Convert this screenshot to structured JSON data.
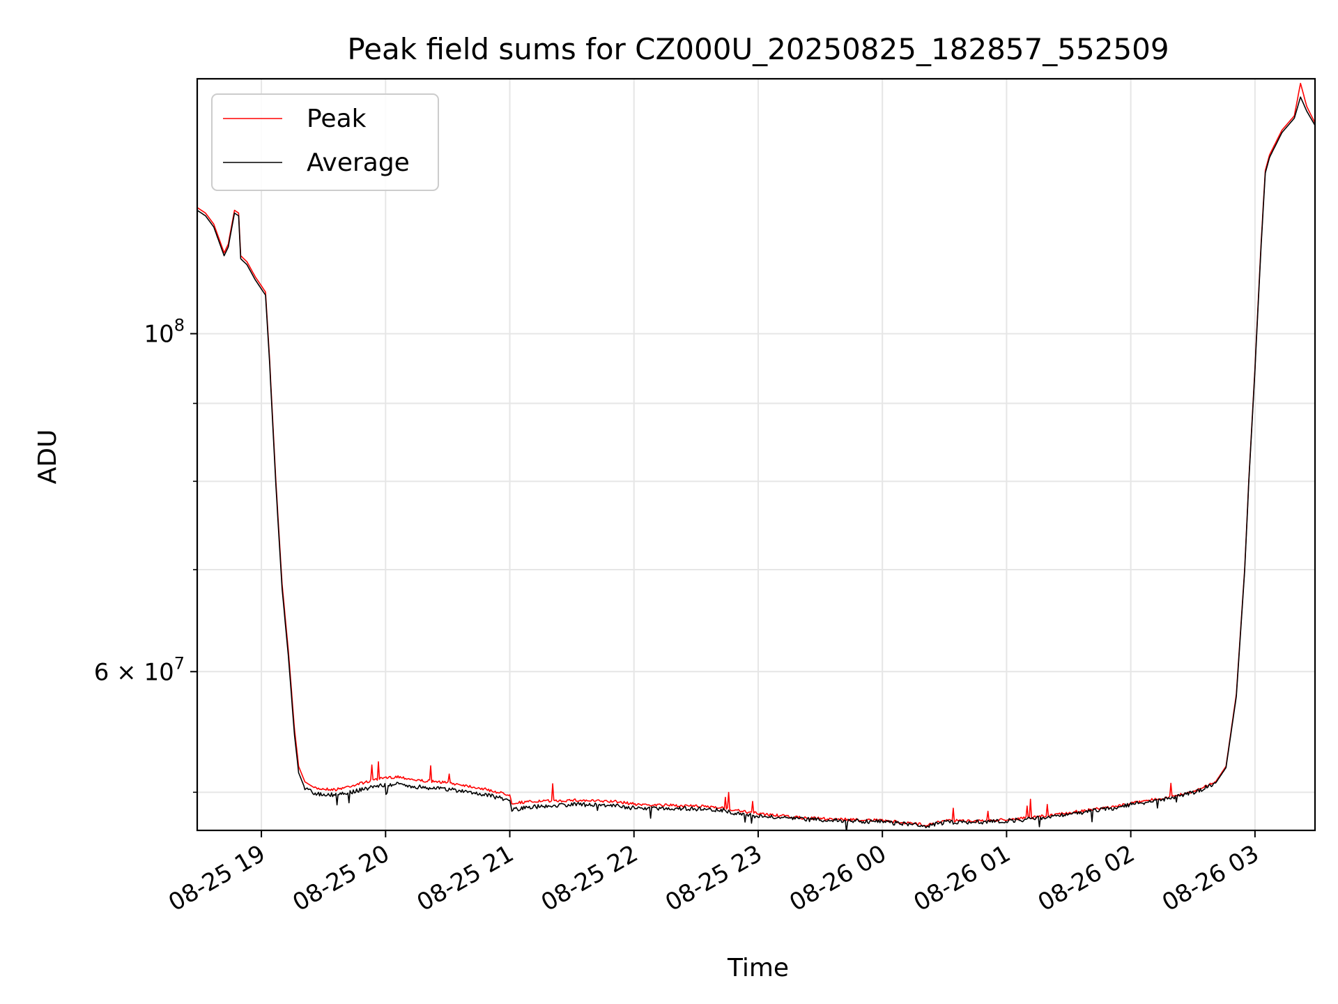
{
  "chart_data": {
    "type": "line",
    "title": "Peak field sums for CZ000U_20250825_182857_552509",
    "xlabel": "Time",
    "ylabel": "ADU",
    "y_scale": "log",
    "grid": true,
    "legend_position": "top-left",
    "xlim": [
      "2025-08-25 18:29",
      "2025-08-26 03:29"
    ],
    "ylim": [
      47200000,
      147000000
    ],
    "x_ticks": [
      {
        "value": "2025-08-25 19:00",
        "label": "08-25 19"
      },
      {
        "value": "2025-08-25 20:00",
        "label": "08-25 20"
      },
      {
        "value": "2025-08-25 21:00",
        "label": "08-25 21"
      },
      {
        "value": "2025-08-25 22:00",
        "label": "08-25 22"
      },
      {
        "value": "2025-08-25 23:00",
        "label": "08-25 23"
      },
      {
        "value": "2025-08-26 00:00",
        "label": "08-26 00"
      },
      {
        "value": "2025-08-26 01:00",
        "label": "08-26 01"
      },
      {
        "value": "2025-08-26 02:00",
        "label": "08-26 02"
      },
      {
        "value": "2025-08-26 03:00",
        "label": "08-26 03"
      }
    ],
    "y_ticks_major": [
      {
        "value": 100000000,
        "base": "10",
        "exp": "8",
        "prefix": ""
      },
      {
        "value": 60000000,
        "base": "10",
        "exp": "7",
        "prefix": "6 × "
      }
    ],
    "y_ticks_minor": [
      50000000,
      70000000,
      80000000,
      90000000
    ],
    "series": [
      {
        "name": "Peak",
        "color": "#ff0000",
        "points": [
          [
            "2025-08-25 18:29",
            121000000
          ],
          [
            "2025-08-25 18:33",
            120000000
          ],
          [
            "2025-08-25 18:37",
            118000000
          ],
          [
            "2025-08-25 18:42",
            113000000
          ],
          [
            "2025-08-25 18:44",
            114500000
          ],
          [
            "2025-08-25 18:47",
            120500000
          ],
          [
            "2025-08-25 18:49",
            120000000
          ],
          [
            "2025-08-25 18:50",
            112500000
          ],
          [
            "2025-08-25 18:53",
            111500000
          ],
          [
            "2025-08-25 18:57",
            109000000
          ],
          [
            "2025-08-25 19:02",
            106500000
          ],
          [
            "2025-08-25 19:04",
            96000000
          ],
          [
            "2025-08-25 19:07",
            80000000
          ],
          [
            "2025-08-25 19:10",
            68500000
          ],
          [
            "2025-08-25 19:13",
            62000000
          ],
          [
            "2025-08-25 19:16",
            55000000
          ],
          [
            "2025-08-25 19:18",
            52000000
          ],
          [
            "2025-08-25 19:21",
            50800000
          ],
          [
            "2025-08-25 19:26",
            50300000
          ],
          [
            "2025-08-25 19:36",
            50200000
          ],
          [
            "2025-08-25 19:46",
            50600000
          ],
          [
            "2025-08-25 19:56",
            51000000
          ],
          [
            "2025-08-25 20:06",
            51200000
          ],
          [
            "2025-08-25 20:16",
            50900000
          ],
          [
            "2025-08-25 20:26",
            50800000
          ],
          [
            "2025-08-25 20:36",
            50600000
          ],
          [
            "2025-08-25 20:46",
            50300000
          ],
          [
            "2025-08-25 21:00",
            49800000
          ],
          [
            "2025-08-25 21:01",
            49200000
          ],
          [
            "2025-08-25 21:11",
            49300000
          ],
          [
            "2025-08-25 21:31",
            49400000
          ],
          [
            "2025-08-25 21:51",
            49300000
          ],
          [
            "2025-08-25 22:01",
            49100000
          ],
          [
            "2025-08-25 22:21",
            49000000
          ],
          [
            "2025-08-25 22:41",
            48900000
          ],
          [
            "2025-08-25 22:51",
            48600000
          ],
          [
            "2025-08-25 23:01",
            48400000
          ],
          [
            "2025-08-25 23:21",
            48100000
          ],
          [
            "2025-08-25 23:41",
            48000000
          ],
          [
            "2025-08-26 00:01",
            47900000
          ],
          [
            "2025-08-26 00:21",
            47600000
          ],
          [
            "2025-08-26 00:31",
            47900000
          ],
          [
            "2025-08-26 00:51",
            47900000
          ],
          [
            "2025-08-26 01:11",
            48100000
          ],
          [
            "2025-08-26 01:31",
            48500000
          ],
          [
            "2025-08-26 01:51",
            48900000
          ],
          [
            "2025-08-26 02:01",
            49200000
          ],
          [
            "2025-08-26 02:21",
            49700000
          ],
          [
            "2025-08-26 02:31",
            50100000
          ],
          [
            "2025-08-26 02:41",
            50800000
          ],
          [
            "2025-08-26 02:46",
            52000000
          ],
          [
            "2025-08-26 02:51",
            58000000
          ],
          [
            "2025-08-26 02:55",
            70000000
          ],
          [
            "2025-08-26 02:57",
            80000000
          ],
          [
            "2025-08-26 03:00",
            95000000
          ],
          [
            "2025-08-26 03:03",
            115000000
          ],
          [
            "2025-08-26 03:05",
            128000000
          ],
          [
            "2025-08-26 03:07",
            131000000
          ],
          [
            "2025-08-26 03:13",
            136000000
          ],
          [
            "2025-08-26 03:19",
            139000000
          ],
          [
            "2025-08-26 03:22",
            146000000
          ],
          [
            "2025-08-26 03:25",
            141000000
          ],
          [
            "2025-08-26 03:29",
            137500000
          ]
        ]
      },
      {
        "name": "Average",
        "color": "#000000",
        "points": [
          [
            "2025-08-25 18:29",
            120500000
          ],
          [
            "2025-08-25 18:33",
            119500000
          ],
          [
            "2025-08-25 18:37",
            117500000
          ],
          [
            "2025-08-25 18:42",
            112500000
          ],
          [
            "2025-08-25 18:44",
            114000000
          ],
          [
            "2025-08-25 18:47",
            120000000
          ],
          [
            "2025-08-25 18:49",
            119500000
          ],
          [
            "2025-08-25 18:50",
            112000000
          ],
          [
            "2025-08-25 18:53",
            111000000
          ],
          [
            "2025-08-25 18:57",
            108500000
          ],
          [
            "2025-08-25 19:02",
            106000000
          ],
          [
            "2025-08-25 19:04",
            95500000
          ],
          [
            "2025-08-25 19:07",
            79500000
          ],
          [
            "2025-08-25 19:10",
            68000000
          ],
          [
            "2025-08-25 19:13",
            61500000
          ],
          [
            "2025-08-25 19:16",
            54500000
          ],
          [
            "2025-08-25 19:18",
            51500000
          ],
          [
            "2025-08-25 19:21",
            50300000
          ],
          [
            "2025-08-25 19:26",
            49900000
          ],
          [
            "2025-08-25 19:36",
            49800000
          ],
          [
            "2025-08-25 19:46",
            50100000
          ],
          [
            "2025-08-25 19:56",
            50500000
          ],
          [
            "2025-08-25 20:06",
            50600000
          ],
          [
            "2025-08-25 20:16",
            50400000
          ],
          [
            "2025-08-25 20:26",
            50300000
          ],
          [
            "2025-08-25 20:36",
            50100000
          ],
          [
            "2025-08-25 20:46",
            49900000
          ],
          [
            "2025-08-25 21:00",
            49400000
          ],
          [
            "2025-08-25 21:01",
            48700000
          ],
          [
            "2025-08-25 21:11",
            48900000
          ],
          [
            "2025-08-25 21:31",
            49100000
          ],
          [
            "2025-08-25 21:51",
            49000000
          ],
          [
            "2025-08-25 22:01",
            48800000
          ],
          [
            "2025-08-25 22:21",
            48800000
          ],
          [
            "2025-08-25 22:41",
            48700000
          ],
          [
            "2025-08-25 22:51",
            48400000
          ],
          [
            "2025-08-25 23:01",
            48200000
          ],
          [
            "2025-08-25 23:21",
            48000000
          ],
          [
            "2025-08-25 23:41",
            47900000
          ],
          [
            "2025-08-26 00:01",
            47800000
          ],
          [
            "2025-08-26 00:21",
            47500000
          ],
          [
            "2025-08-26 00:31",
            47800000
          ],
          [
            "2025-08-26 00:51",
            47800000
          ],
          [
            "2025-08-26 01:11",
            48000000
          ],
          [
            "2025-08-26 01:31",
            48400000
          ],
          [
            "2025-08-26 01:51",
            48800000
          ],
          [
            "2025-08-26 02:01",
            49100000
          ],
          [
            "2025-08-26 02:21",
            49600000
          ],
          [
            "2025-08-26 02:31",
            50000000
          ],
          [
            "2025-08-26 02:41",
            50700000
          ],
          [
            "2025-08-26 02:46",
            51900000
          ],
          [
            "2025-08-26 02:51",
            57800000
          ],
          [
            "2025-08-26 02:55",
            69800000
          ],
          [
            "2025-08-26 02:57",
            79800000
          ],
          [
            "2025-08-26 03:00",
            94700000
          ],
          [
            "2025-08-26 03:03",
            114500000
          ],
          [
            "2025-08-26 03:05",
            127500000
          ],
          [
            "2025-08-26 03:07",
            130500000
          ],
          [
            "2025-08-26 03:13",
            135500000
          ],
          [
            "2025-08-26 03:19",
            138500000
          ],
          [
            "2025-08-26 03:22",
            143000000
          ],
          [
            "2025-08-26 03:25",
            140000000
          ],
          [
            "2025-08-26 03:29",
            137000000
          ]
        ]
      }
    ]
  }
}
